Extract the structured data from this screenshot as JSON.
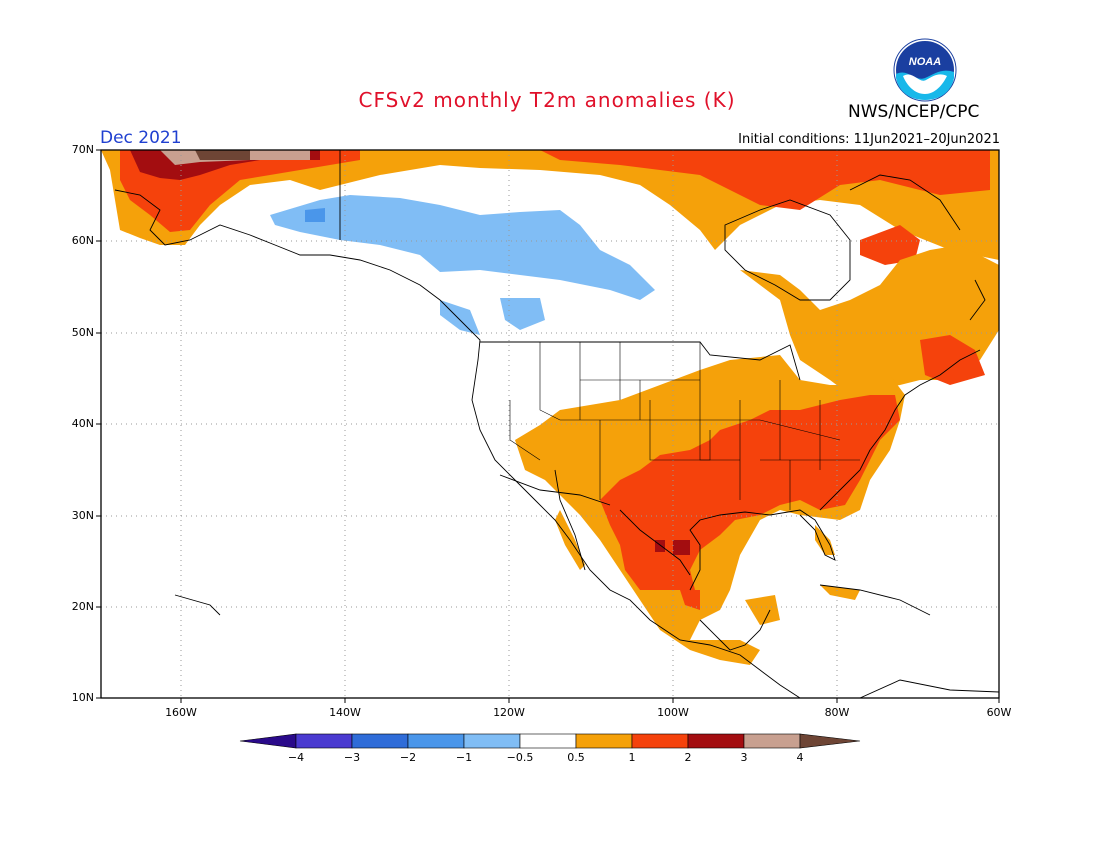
{
  "title": "CFSv2 monthly T2m anomalies (K)",
  "month": "Dec 2021",
  "initial_conditions": "Initial conditions: 11Jun2021–20Jun2021",
  "agency": "NWS/NCEP/CPC",
  "logo_text": "NOAA",
  "lat_labels": [
    "70N",
    "60N",
    "50N",
    "40N",
    "30N",
    "20N",
    "10N"
  ],
  "lon_labels": [
    "160W",
    "140W",
    "120W",
    "100W",
    "80W",
    "60W"
  ],
  "colorbar": {
    "labels": [
      "−4",
      "−3",
      "−2",
      "−1",
      "−0.5",
      "0.5",
      "1",
      "2",
      "3",
      "4"
    ],
    "colors": [
      "#2a0a8a",
      "#4a3ad0",
      "#2f6cd8",
      "#4a96ea",
      "#80bdf5",
      "#ffffff",
      "#f5a10a",
      "#f5420c",
      "#a30d10",
      "#c8a090",
      "#6e4535"
    ]
  },
  "legend_colors": {
    "anom_0_5_1": "#f5a10a",
    "anom_1_2": "#f5420c",
    "anom_2_3": "#a30d10",
    "anom_3_4": "#c8a090",
    "anom_neg_1_neg_0_5": "#80bdf5",
    "anom_neg_2_neg_1": "#4a96ea"
  }
}
